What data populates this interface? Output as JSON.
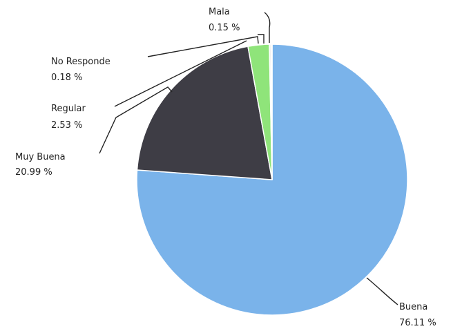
{
  "chart_data": {
    "type": "pie",
    "title": "",
    "slices": [
      {
        "label": "Buena",
        "value_label": "76.11 %",
        "value": 76.11,
        "color": "#7ab3ea"
      },
      {
        "label": "Muy Buena",
        "value_label": "20.99 %",
        "value": 20.99,
        "color": "#3e3d45"
      },
      {
        "label": "Regular",
        "value_label": "2.53 %",
        "value": 2.53,
        "color": "#8fe47a"
      },
      {
        "label": "No Responde",
        "value_label": "0.18 %",
        "value": 0.18,
        "color": "#e0e0e0"
      },
      {
        "label": "Mala",
        "value_label": "0.15 %",
        "value": 0.15,
        "color": "#f0f0f0"
      }
    ]
  }
}
